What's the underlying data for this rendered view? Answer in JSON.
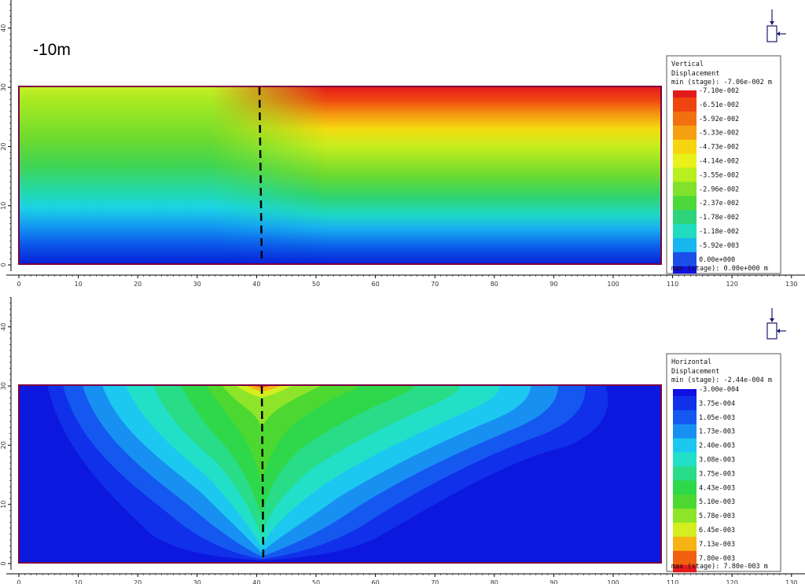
{
  "depth_label": "-10m",
  "top_plot": {
    "legend": {
      "title_line1": "Vertical",
      "title_line2": "Displacement",
      "min_line": "min (stage): -7.06e-002 m",
      "max_line": "max (stage): 0.00e+000 m",
      "entries": [
        "-7.10e-002",
        "-6.51e-002",
        "-5.92e-002",
        "-5.33e-002",
        "-4.73e-002",
        "-4.14e-002",
        "-3.55e-002",
        "-2.96e-002",
        "-2.37e-002",
        "-1.78e-002",
        "-1.18e-002",
        "-5.92e-003",
        "0.00e+000"
      ],
      "colors": [
        "#e31a1c",
        "#ee4410",
        "#f27010",
        "#f5a010",
        "#f7d40f",
        "#e8f21a",
        "#b8ef1e",
        "#80e22a",
        "#4cd838",
        "#2ed47c",
        "#22dcc0",
        "#18b6f0",
        "#1a50e8",
        "#1010e0"
      ]
    },
    "band_colors_top_to_bottom": [
      "#d8f22a",
      "#b0ea22",
      "#8ee228",
      "#6cda2e",
      "#4ed640",
      "#2fd468",
      "#20d8a0",
      "#1cd8d8",
      "#16b8f0",
      "#128ef0",
      "#1060ec",
      "#0a36e6",
      "#0620d8"
    ]
  },
  "bottom_plot": {
    "legend": {
      "title_line1": "Horizontal",
      "title_line2": "Displacement",
      "min_line": "min (stage): -2.44e-004 m",
      "max_line": "max (stage): 7.80e-003 m",
      "entries": [
        "-3.00e-004",
        "3.75e-004",
        "1.05e-003",
        "1.73e-003",
        "2.40e-003",
        "3.08e-003",
        "3.75e-003",
        "4.43e-003",
        "5.10e-003",
        "5.78e-003",
        "6.45e-003",
        "7.13e-003",
        "7.80e-003"
      ],
      "colors": [
        "#1010e0",
        "#1030ea",
        "#1458f0",
        "#1890f2",
        "#1cc8f0",
        "#22e0c8",
        "#28dc88",
        "#2ed84a",
        "#4cd830",
        "#8ee428",
        "#d4ee20",
        "#f6b414",
        "#f06010",
        "#e31a1c"
      ]
    }
  },
  "axes": {
    "x_ticks": [
      "0",
      "10",
      "20",
      "30",
      "40",
      "50",
      "60",
      "70",
      "80",
      "90",
      "100",
      "110",
      "120",
      "130"
    ],
    "y_ticks": [
      "0",
      "10",
      "20",
      "30",
      "40"
    ]
  },
  "icon": "displacement-direction-icon"
}
